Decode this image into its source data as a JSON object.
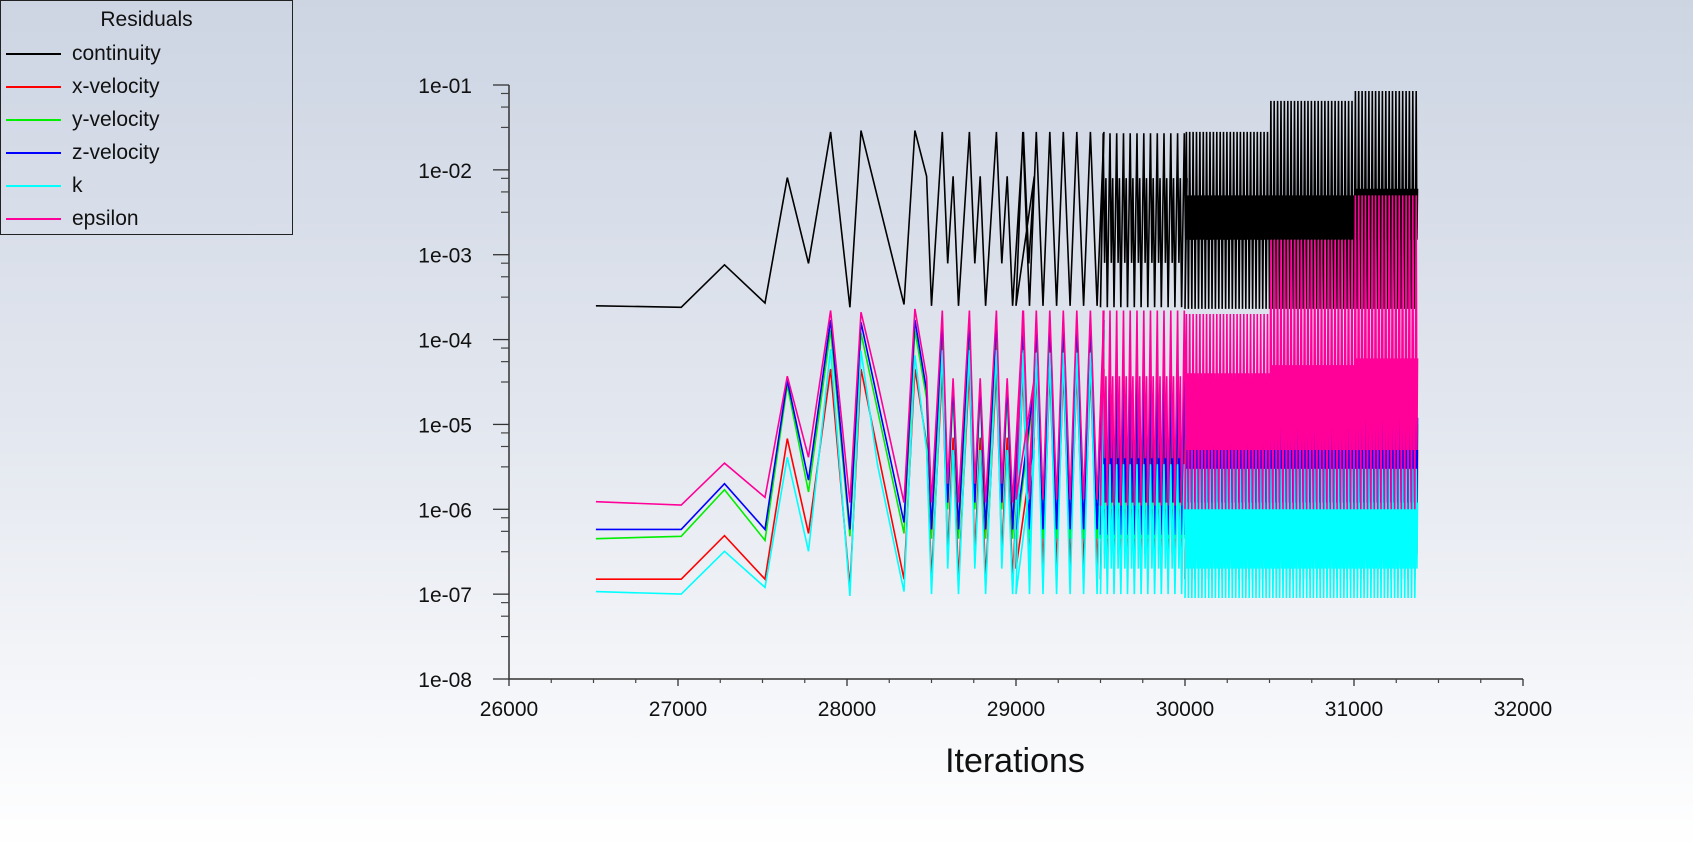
{
  "chart_data": {
    "type": "line",
    "title": "Residuals",
    "xlabel": "Iterations",
    "ylabel": "",
    "yscale": "log",
    "xlim": [
      26000,
      32000
    ],
    "ylim": [
      1e-08,
      0.1
    ],
    "grid": false,
    "legend_position": "top-left",
    "xticks": [
      26000,
      27000,
      28000,
      29000,
      30000,
      31000,
      32000
    ],
    "xtick_labels": [
      "26000",
      "27000",
      "28000",
      "29000",
      "30000",
      "31000",
      "32000"
    ],
    "yticks": [
      0.1,
      0.01,
      0.001,
      0.0001,
      1e-05,
      1e-06,
      1e-07,
      1e-08
    ],
    "ytick_labels": [
      "1e-01",
      "1e-02",
      "1e-03",
      "1e-04",
      "1e-05",
      "1e-06",
      "1e-07",
      "1e-08"
    ],
    "series": [
      {
        "name": "continuity",
        "color": "#000000"
      },
      {
        "name": "x-velocity",
        "color": "#ff0000"
      },
      {
        "name": "y-velocity",
        "color": "#00ee00"
      },
      {
        "name": "z-velocity",
        "color": "#0000ff"
      },
      {
        "name": "k",
        "color": "#00ffff"
      },
      {
        "name": "epsilon",
        "color": "#ff0099"
      }
    ],
    "early_x": [
      26514,
      27019,
      27275,
      27515,
      27647,
      27772,
      27903,
      28017,
      28083,
      28180,
      28337,
      28402,
      28471
    ],
    "early_values": {
      "continuity": [
        0.00025,
        0.00024,
        0.00076,
        0.00027,
        0.0081,
        0.00079,
        0.028,
        0.00024,
        0.029,
        0.0048,
        0.00026,
        0.029,
        0.0084
      ],
      "x-velocity": [
        1.5e-07,
        1.5e-07,
        4.9e-07,
        1.5e-07,
        6.8e-06,
        5.2e-07,
        4.5e-05,
        1.2e-07,
        4.5e-05,
        5e-06,
        1.5e-07,
        4.5e-05,
        6e-06
      ],
      "y-velocity": [
        4.5e-07,
        4.8e-07,
        1.7e-06,
        4.3e-07,
        2.9e-05,
        1.6e-06,
        0.00013,
        4.8e-07,
        0.00012,
        1.5e-05,
        5.2e-07,
        0.00013,
        2e-05
      ],
      "z-velocity": [
        5.8e-07,
        5.8e-07,
        2e-06,
        5.8e-07,
        3.3e-05,
        2.2e-06,
        0.00017,
        5.8e-07,
        0.00016,
        2e-05,
        7e-07,
        0.00017,
        2.5e-05
      ],
      "k": [
        1.07e-07,
        1e-07,
        3.2e-07,
        1.2e-07,
        4.1e-06,
        3.2e-07,
        7.7e-05,
        9.5e-08,
        7.4e-05,
        3.4e-06,
        1.07e-07,
        6.5e-05,
        5e-06
      ],
      "epsilon": [
        1.23e-06,
        1.12e-06,
        3.5e-06,
        1.38e-06,
        3.7e-05,
        4.1e-06,
        0.00022,
        1.2e-06,
        0.00021,
        3.2e-05,
        1.2e-06,
        0.00023,
        3.6e-05
      ]
    },
    "oscillation_segments": [
      {
        "from": 28500,
        "to": 29000,
        "period": 160,
        "levels": {
          "continuity": [
            0.00025,
            0.00079,
            0.0084,
            0.028
          ],
          "x-velocity": [
            1.5e-07,
            3e-07,
            7e-06,
            4.5e-05
          ],
          "y-velocity": [
            4.5e-07,
            1e-06,
            2.5e-05,
            0.00013
          ],
          "z-velocity": [
            5.8e-07,
            1.2e-06,
            3e-05,
            0.00017
          ],
          "k": [
            1e-07,
            2e-07,
            5e-06,
            7.5e-05
          ],
          "epsilon": [
            1.2e-06,
            2e-06,
            3.5e-05,
            0.00022
          ]
        }
      },
      {
        "from": 29000,
        "to": 29500,
        "period": 80,
        "levels": {
          "continuity": [
            0.00025,
            0.028
          ],
          "x-velocity": [
            2e-07,
            4.5e-05
          ],
          "y-velocity": [
            4.5e-07,
            0.00013
          ],
          "z-velocity": [
            5.8e-07,
            0.00017
          ],
          "k": [
            1e-07,
            7e-05
          ],
          "epsilon": [
            1.3e-06,
            0.00022
          ]
        }
      },
      {
        "from": 29500,
        "to": 30000,
        "period": 40,
        "levels": {
          "continuity": [
            0.00024,
            0.0008,
            0.008,
            0.027
          ],
          "x-velocity": [
            1.5e-07,
            3e-07,
            5e-06,
            2e-05
          ],
          "y-velocity": [
            4.5e-07,
            1e-06,
            1e-05,
            3e-05
          ],
          "z-velocity": [
            5e-07,
            1.2e-06,
            1.2e-05,
            3.5e-05
          ],
          "k": [
            1e-07,
            2e-07,
            1.2e-06,
            3.4e-06
          ],
          "epsilon": [
            1.1e-06,
            4e-06,
            3.7e-05,
            0.00022
          ]
        }
      },
      {
        "from": 30000,
        "to": 30500,
        "period": 20,
        "levels": {
          "continuity": [
            0.00023,
            0.0015,
            0.005,
            0.028
          ],
          "x-velocity": [
            1.5e-07,
            3e-07,
            5e-06,
            2e-05
          ],
          "y-velocity": [
            4.5e-07,
            1e-06,
            1e-05,
            3e-05
          ],
          "z-velocity": [
            5e-07,
            1.2e-06,
            1.2e-05,
            3.5e-05
          ],
          "k": [
            9e-08,
            2e-07,
            1.2e-06,
            3e-06
          ],
          "epsilon": [
            1e-06,
            5e-06,
            4e-05,
            0.0002
          ]
        }
      },
      {
        "from": 30500,
        "to": 31000,
        "period": 20,
        "levels": {
          "continuity": [
            0.00023,
            0.0015,
            0.005,
            0.065
          ],
          "x-velocity": [
            1.5e-07,
            3e-07,
            5e-06,
            2e-05
          ],
          "y-velocity": [
            4.5e-07,
            1e-06,
            1e-05,
            3e-05
          ],
          "z-velocity": [
            5e-07,
            1.2e-06,
            1.2e-05,
            3.5e-05
          ],
          "k": [
            9e-08,
            2e-07,
            1.2e-06,
            3e-06
          ],
          "epsilon": [
            1e-06,
            5e-06,
            5e-05,
            0.0015
          ]
        }
      },
      {
        "from": 31000,
        "to": 31380,
        "period": 20,
        "levels": {
          "continuity": [
            0.00023,
            0.0015,
            0.006,
            0.085
          ],
          "x-velocity": [
            1.5e-07,
            3e-07,
            5e-06,
            2e-05
          ],
          "y-velocity": [
            4.5e-07,
            1e-06,
            1e-05,
            3e-05
          ],
          "z-velocity": [
            5e-07,
            1.2e-06,
            1.2e-05,
            3.5e-05
          ],
          "k": [
            9e-08,
            2e-07,
            1.2e-06,
            3e-06
          ],
          "epsilon": [
            1e-06,
            5e-06,
            6e-05,
            0.005
          ]
        }
      }
    ]
  }
}
